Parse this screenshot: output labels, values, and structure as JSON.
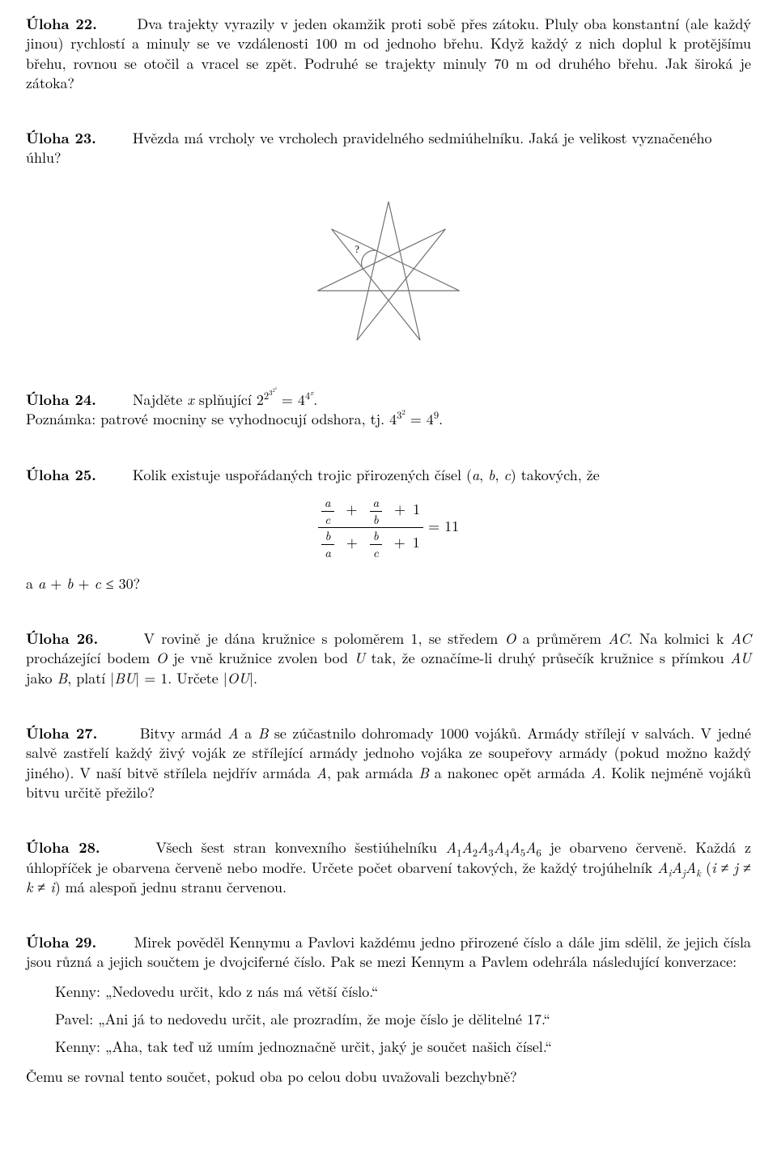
{
  "u22": {
    "title": "Úloha 22.",
    "text": "Dva trajekty vyrazily v jeden okamžik proti sobě přes zátoku. Pluly oba konstantní (ale každý jinou) rychlostí a minuly se ve vzdálenosti 100 m od jednoho břehu. Když každý z nich doplul k protějšímu břehu, rovnou se otočil a vracel se zpět. Podruhé se trajekty minuly 70 m od druhého břehu. Jak široká je zátoka?"
  },
  "u23": {
    "title": "Úloha 23.",
    "text_before": "Hvězda má vrcholy ve vrcholech pravidelného sedmiúhelníku. Jaká je velikost vyznačeného",
    "text_after": "úhlu?",
    "star": {
      "outer_radius": 90,
      "n": 7,
      "stroke": "#717171",
      "stroke_width": 1.2,
      "angle_label": "?",
      "label_fontsize": 13
    }
  },
  "u24": {
    "title": "Úloha 24.",
    "lead": "Najděte ",
    "var": "x",
    "mid": " splňující ",
    "note": "Poznámka: patrové mocniny se vyhodnocují odshora, tj. "
  },
  "u25": {
    "title": "Úloha 25.",
    "lead": "Kolik existuje uspořádaných trojic přirozených čísel ",
    "tuple": "(a, b, c)",
    "tail": " takových, že",
    "rhs": " = 11",
    "question": "a a + b + c ≤ 30?"
  },
  "u26": {
    "title": "Úloha 26.",
    "text": "V rovině je dána kružnice s poloměrem 1, se středem O a průměrem AC. Na kolmici k AC procházející bodem O je vně kružnice zvolen bod U tak, že označíme-li druhý průsečík kružnice s přímkou AU jako B, platí |BU| = 1. Určete |OU|."
  },
  "u27": {
    "title": "Úloha 27.",
    "text": "Bitvy armád A a B se zúčastnilo dohromady 1000 vojáků. Armády střílejí v salvách. V jedné salvě zastřelí každý živý voják ze střílející armády jednoho vojáka ze soupeřovy armády (pokud možno každý jiného). V naší bitvě střílela nejdřív armáda A, pak armáda B a nakonec opět armáda A. Kolik nejméně vojáků bitvu určitě přežilo?"
  },
  "u28": {
    "title": "Úloha 28.",
    "text": "Všech šest stran konvexního šestiúhelníku A₁A₂A₃A₄A₅A₆ je obarveno červeně. Každá z úhlopříček je obarvena červeně nebo modře. Určete počet obarvení takových, že každý trojúhelník AᵢAⱼAₖ (i ≠ j ≠ k ≠ i) má alespoň jednu stranu červenou."
  },
  "u29": {
    "title": "Úloha 29.",
    "intro": "Mirek pověděl Kennymu a Pavlovi každému jedno přirozené číslo a dále jim sdělil, že jejich čísla jsou různá a jejich součtem je dvojciferné číslo. Pak se mezi Kennym a Pavlem odehrála následující konverzace:",
    "lines": [
      "Kenny: „Nedovedu určit, kdo z nás má větší číslo.“",
      "Pavel: „Ani já to nedovedu určit, ale prozradím, že moje číslo je dělitelné 17.“",
      "Kenny: „Aha, tak teď už umím jednoznačně určit, jaký je součet našich čísel.“"
    ],
    "final": "Čemu se rovnal tento součet, pokud oba po celou dobu uvažovali bezchybně?"
  }
}
